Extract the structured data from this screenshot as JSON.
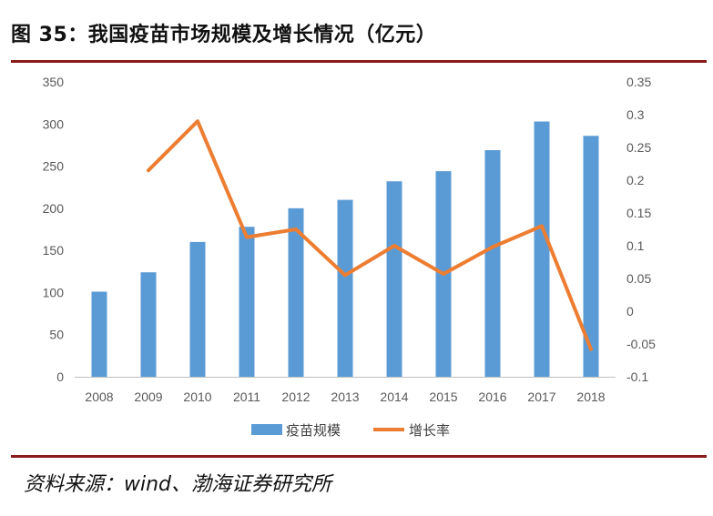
{
  "header": {
    "title": "图 35：我国疫苗市场规模及增长情况（亿元）"
  },
  "footer": {
    "source": "资料来源：wind、渤海证券研究所"
  },
  "colors": {
    "bar": "#5b9bd5",
    "line": "#ed7d31",
    "accent": "#8b1a1a"
  },
  "chart_data": {
    "type": "bar",
    "categories": [
      "2008",
      "2009",
      "2010",
      "2011",
      "2012",
      "2013",
      "2014",
      "2015",
      "2016",
      "2017",
      "2018"
    ],
    "series": [
      {
        "name": "疫苗规模",
        "type": "bar",
        "axis": "left",
        "values": [
          101,
          124,
          160,
          178,
          200,
          210,
          232,
          244,
          269,
          303,
          286
        ]
      },
      {
        "name": "增长率",
        "type": "line",
        "axis": "right",
        "values": [
          null,
          0.215,
          0.29,
          0.113,
          0.125,
          0.055,
          0.1,
          0.057,
          0.098,
          0.13,
          -0.058
        ]
      }
    ],
    "y_left": {
      "min": 0,
      "max": 350,
      "ticks": [
        "0",
        "50",
        "100",
        "150",
        "200",
        "250",
        "300",
        "350"
      ]
    },
    "y_right": {
      "min": -0.1,
      "max": 0.35,
      "ticks": [
        "-0.1",
        "-0.05",
        "0",
        "0.05",
        "0.1",
        "0.15",
        "0.2",
        "0.25",
        "0.3",
        "0.35"
      ]
    },
    "legend": "bottom",
    "grid": false
  }
}
